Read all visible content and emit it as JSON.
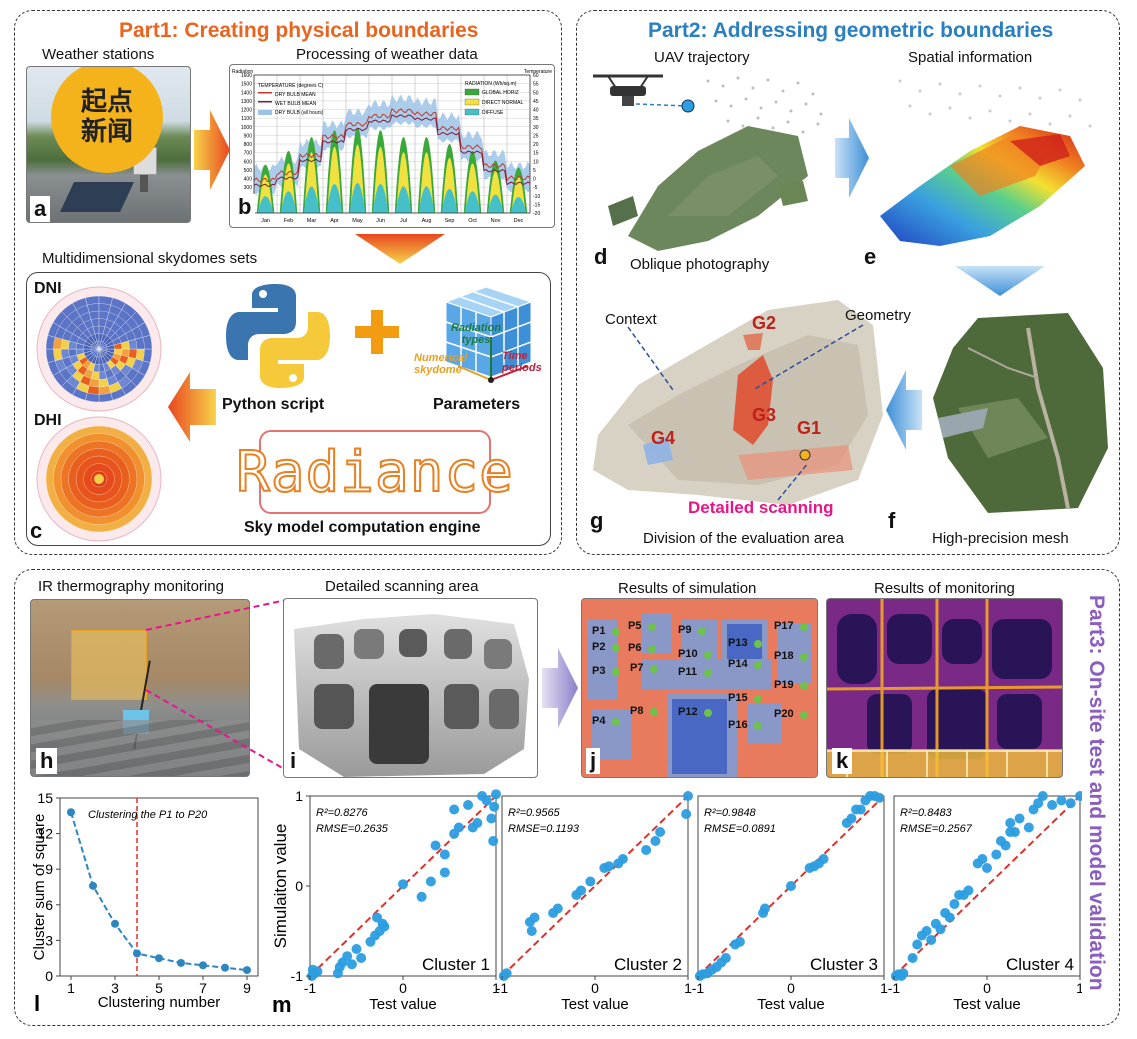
{
  "part1": {
    "title": "Part1: Creating physical boundaries",
    "weather_caption": "Weather stations",
    "processing_caption": "Processing of weather data",
    "skydomes_caption": "Multidimensional skydomes sets",
    "dni_label": "DNI",
    "dhi_label": "DHI",
    "python_caption": "Python script",
    "parameters_caption": "Parameters",
    "radiance_text": "Radiance",
    "engine_caption": "Sky model computation engine",
    "logo_text": "起点新闻",
    "cube_labels": {
      "radiation": "Radiation types",
      "numerical": "Numerical skydome",
      "time": "Time periods"
    },
    "letters": {
      "a": "a",
      "b": "b",
      "c": "c"
    }
  },
  "weather_chart": {
    "left_title": "Radiation",
    "right_title": "Temperature",
    "left_ticks": [
      "1600",
      "1500",
      "1400",
      "1300",
      "1200",
      "1100",
      "1000",
      "900",
      "800",
      "700",
      "600",
      "500",
      "400",
      "300",
      "200",
      "100",
      "0"
    ],
    "right_ticks": [
      "60",
      "55",
      "50",
      "45",
      "40",
      "35",
      "30",
      "25",
      "20",
      "15",
      "10",
      "5",
      "0",
      "-5",
      "-10",
      "-15",
      "-20"
    ],
    "months": [
      "Jan",
      "Feb",
      "Mar",
      "Apr",
      "May",
      "Jun",
      "Jul",
      "Aug",
      "Sep",
      "Oct",
      "Nov",
      "Dec"
    ],
    "legend_left_title": "TEMPERATURE  (degrees C)",
    "legend_left": [
      "DRY BULB MEAN",
      "WET BULB MEAN",
      "DRY BULB (all hours)"
    ],
    "legend_right_title": "RADIATION  (Wh/sq.m)",
    "legend_right": [
      "GLOBAL HORIZ",
      "DIRECT NORMAL",
      "DIFFUSE"
    ],
    "colors": {
      "dry": "#c0392b",
      "wet": "#7b1f3a",
      "band": "#9cc3e6",
      "global": "#3aa83a",
      "direct": "#f0e040",
      "diffuse": "#45c0c8"
    }
  },
  "part2": {
    "title": "Part2: Addressing geometric boundaries",
    "uav_caption": "UAV trajectory",
    "spatial_caption": "Spatial information",
    "oblique_caption": "Oblique photography",
    "mesh_caption": "High-precision mesh",
    "division_caption": "Division of the evaluation area",
    "context_label": "Context",
    "geometry_label": "Geometry",
    "detailed_label": "Detailed scanning",
    "zones": [
      "G1",
      "G2",
      "G3",
      "G4"
    ],
    "letters": {
      "d": "d",
      "e": "e",
      "f": "f",
      "g": "g"
    }
  },
  "part3": {
    "title": "Part3: On-site test and model validation",
    "ir_caption": "IR thermography monitoring",
    "scan_caption": "Detailed scanning area",
    "sim_caption": "Results of simulation",
    "mon_caption": "Results of monitoring",
    "points": [
      "P1",
      "P2",
      "P3",
      "P4",
      "P5",
      "P6",
      "P7",
      "P8",
      "P9",
      "P10",
      "P11",
      "P12",
      "P13",
      "P14",
      "P15",
      "P16",
      "P17",
      "P18",
      "P19",
      "P20"
    ],
    "letters": {
      "h": "h",
      "i": "i",
      "j": "j",
      "k": "k",
      "l": "l",
      "m": "m"
    }
  },
  "chart_data": [
    {
      "type": "line",
      "title": "",
      "xlabel": "Clustering number",
      "ylabel": "Cluster sum of square",
      "annotation": "Clustering the P1 to P20",
      "x": [
        1,
        2,
        3,
        4,
        5,
        6,
        7,
        8,
        9
      ],
      "y": [
        13.8,
        7.6,
        4.4,
        1.9,
        1.5,
        1.1,
        0.9,
        0.7,
        0.5
      ],
      "xticks": [
        "1",
        "3",
        "5",
        "7",
        "9"
      ],
      "yticks": [
        "0",
        "3",
        "6",
        "9",
        "12",
        "15"
      ],
      "xlim": [
        0.5,
        9.5
      ],
      "ylim": [
        0,
        15
      ],
      "elbow_x": 4,
      "colors": {
        "line": "#2e86c1",
        "elbow": "#e0302a"
      }
    },
    {
      "type": "scatter",
      "xlabel": "Test value",
      "ylabel": "Simulaiton value",
      "xlim": [
        -1,
        1
      ],
      "ylim": [
        -1,
        1
      ],
      "xticks": [
        "-1",
        "0",
        "1"
      ],
      "yticks": [
        "-1",
        "0",
        "1"
      ],
      "colors": {
        "point": "#2b9de0",
        "fit": "#e0302a"
      },
      "series": [
        {
          "name": "Cluster 1",
          "r2": "R²=0.8276",
          "rmse": "RMSE=0.2635",
          "points": [
            [
              -0.98,
              -1.0
            ],
            [
              -0.95,
              -0.97
            ],
            [
              -0.92,
              -0.95
            ],
            [
              -0.97,
              -0.93
            ],
            [
              -0.7,
              -0.97
            ],
            [
              -0.68,
              -0.9
            ],
            [
              -0.55,
              -0.87
            ],
            [
              -0.65,
              -0.85
            ],
            [
              -0.6,
              -0.78
            ],
            [
              -0.45,
              -0.8
            ],
            [
              -0.5,
              -0.7
            ],
            [
              -0.35,
              -0.62
            ],
            [
              -0.3,
              -0.55
            ],
            [
              -0.25,
              -0.5
            ],
            [
              -0.22,
              -0.42
            ],
            [
              -0.28,
              -0.35
            ],
            [
              -0.2,
              -0.45
            ],
            [
              0.0,
              0.02
            ],
            [
              0.2,
              -0.12
            ],
            [
              0.3,
              0.05
            ],
            [
              0.35,
              0.45
            ],
            [
              0.45,
              0.15
            ],
            [
              0.55,
              0.58
            ],
            [
              0.6,
              0.65
            ],
            [
              0.55,
              0.85
            ],
            [
              0.7,
              0.9
            ],
            [
              0.75,
              0.65
            ],
            [
              0.8,
              0.7
            ],
            [
              0.85,
              1.0
            ],
            [
              0.9,
              0.95
            ],
            [
              0.95,
              0.75
            ],
            [
              1.0,
              1.02
            ],
            [
              0.98,
              0.88
            ],
            [
              0.97,
              0.5
            ],
            [
              0.45,
              0.35
            ]
          ]
        },
        {
          "name": "Cluster 2",
          "r2": "R²=0.9565",
          "rmse": "RMSE=0.1193",
          "points": [
            [
              -0.98,
              -1.0
            ],
            [
              -0.95,
              -0.97
            ],
            [
              -0.7,
              -0.4
            ],
            [
              -0.68,
              -0.5
            ],
            [
              -0.65,
              -0.35
            ],
            [
              -0.45,
              -0.3
            ],
            [
              -0.4,
              -0.25
            ],
            [
              -0.2,
              -0.1
            ],
            [
              -0.15,
              -0.05
            ],
            [
              -0.05,
              0.05
            ],
            [
              0.1,
              0.2
            ],
            [
              0.15,
              0.22
            ],
            [
              0.25,
              0.25
            ],
            [
              0.3,
              0.3
            ],
            [
              0.55,
              0.4
            ],
            [
              0.65,
              0.5
            ],
            [
              0.7,
              0.6
            ],
            [
              1.0,
              1.0
            ],
            [
              0.98,
              0.8
            ]
          ]
        },
        {
          "name": "Cluster 3",
          "r2": "R²=0.9848",
          "rmse": "RMSE=0.0891",
          "points": [
            [
              -0.98,
              -1.0
            ],
            [
              -0.95,
              -0.98
            ],
            [
              -0.9,
              -0.97
            ],
            [
              -0.85,
              -0.93
            ],
            [
              -0.8,
              -0.9
            ],
            [
              -0.75,
              -0.85
            ],
            [
              -0.7,
              -0.8
            ],
            [
              -0.6,
              -0.65
            ],
            [
              -0.55,
              -0.62
            ],
            [
              -0.3,
              -0.3
            ],
            [
              -0.28,
              -0.25
            ],
            [
              0.0,
              0.0
            ],
            [
              0.2,
              0.2
            ],
            [
              0.25,
              0.22
            ],
            [
              0.3,
              0.25
            ],
            [
              0.35,
              0.3
            ],
            [
              0.6,
              0.7
            ],
            [
              0.65,
              0.75
            ],
            [
              0.7,
              0.85
            ],
            [
              0.75,
              0.85
            ],
            [
              0.8,
              0.95
            ],
            [
              0.85,
              1.0
            ],
            [
              0.9,
              1.0
            ],
            [
              0.95,
              0.98
            ]
          ]
        },
        {
          "name": "Cluster 4",
          "r2": "R²=0.8483",
          "rmse": "RMSE=0.2567",
          "points": [
            [
              -0.98,
              -1.0
            ],
            [
              -0.95,
              -0.98
            ],
            [
              -0.9,
              -0.97
            ],
            [
              -0.92,
              -1.0
            ],
            [
              -0.8,
              -0.8
            ],
            [
              -0.75,
              -0.65
            ],
            [
              -0.7,
              -0.55
            ],
            [
              -0.65,
              -0.5
            ],
            [
              -0.6,
              -0.6
            ],
            [
              -0.55,
              -0.42
            ],
            [
              -0.5,
              -0.48
            ],
            [
              -0.45,
              -0.3
            ],
            [
              -0.4,
              -0.35
            ],
            [
              -0.35,
              -0.2
            ],
            [
              -0.3,
              -0.1
            ],
            [
              -0.25,
              -0.1
            ],
            [
              -0.2,
              -0.05
            ],
            [
              -0.1,
              0.25
            ],
            [
              -0.05,
              0.3
            ],
            [
              0.0,
              0.2
            ],
            [
              0.1,
              0.35
            ],
            [
              0.15,
              0.5
            ],
            [
              0.2,
              0.45
            ],
            [
              0.25,
              0.7
            ],
            [
              0.3,
              0.6
            ],
            [
              0.35,
              0.75
            ],
            [
              0.45,
              0.65
            ],
            [
              0.5,
              0.85
            ],
            [
              0.55,
              0.92
            ],
            [
              0.6,
              1.0
            ],
            [
              0.7,
              0.9
            ],
            [
              0.8,
              0.95
            ],
            [
              0.9,
              0.92
            ],
            [
              1.0,
              1.0
            ],
            [
              0.25,
              0.6
            ]
          ]
        }
      ]
    }
  ]
}
